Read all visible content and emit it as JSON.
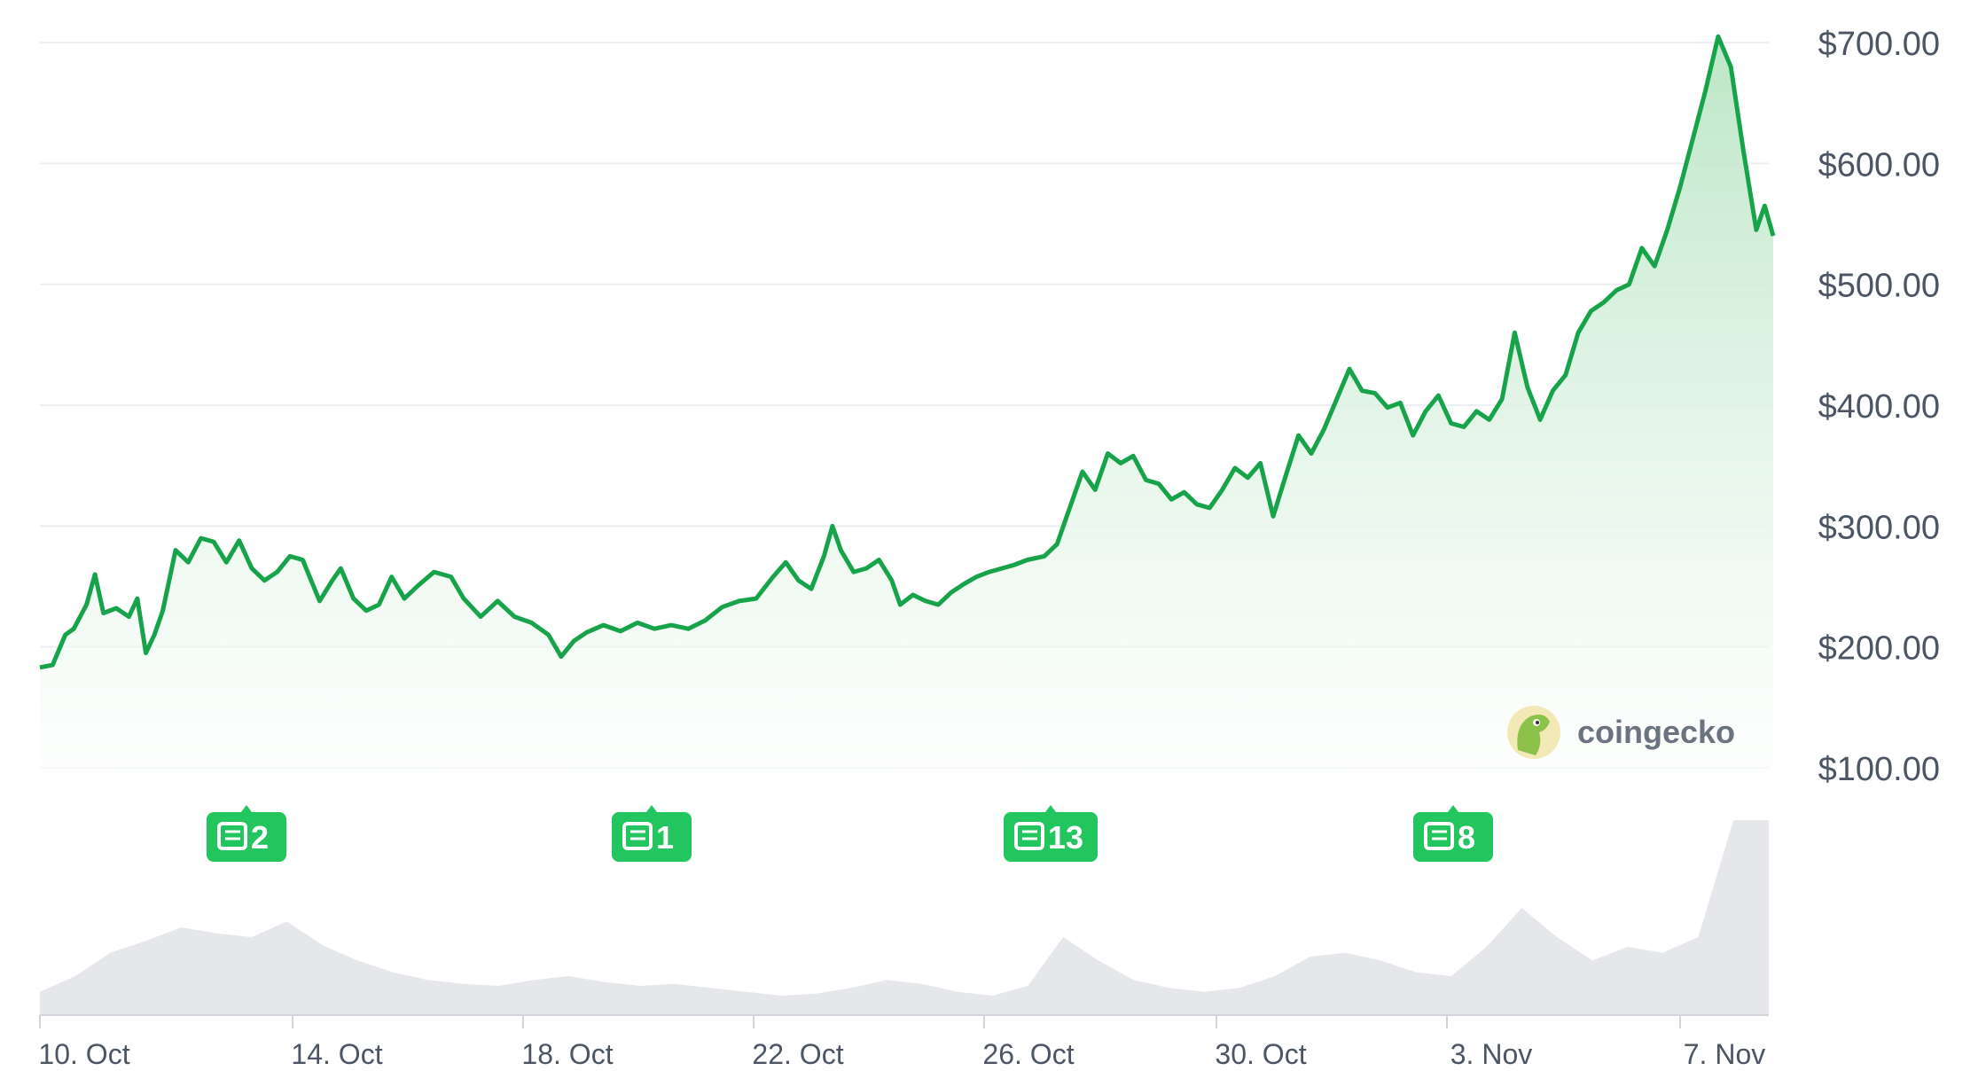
{
  "brand": {
    "name": "coingecko",
    "logo_icon": "gecko-logo-icon"
  },
  "colors": {
    "line": "#16a34a",
    "area_top": "#bfe7c8",
    "volume": "#e5e7eb",
    "news_badge": "#22c55e",
    "grid": "#eceef1",
    "text": "#4b5563"
  },
  "news_badges": [
    {
      "date": "Oct 13",
      "count": "2",
      "icon": "newspaper-icon"
    },
    {
      "date": "Oct 20",
      "count": "1",
      "icon": "newspaper-icon"
    },
    {
      "date": "Oct 27",
      "count": "13",
      "icon": "newspaper-icon"
    },
    {
      "date": "Nov 3",
      "count": "8",
      "icon": "newspaper-icon"
    }
  ],
  "chart_data": {
    "type": "area",
    "title": "",
    "xlabel": "",
    "ylabel": "",
    "grid": true,
    "x_tick_labels": [
      "10. Oct",
      "14. Oct",
      "18. Oct",
      "22. Oct",
      "26. Oct",
      "30. Oct",
      "3. Nov",
      "7. Nov"
    ],
    "y_tick_labels": [
      "$700.00",
      "$600.00",
      "$500.00",
      "$400.00",
      "$300.00",
      "$200.00",
      "$100.00"
    ],
    "y_ticks": [
      700,
      600,
      500,
      400,
      300,
      200,
      100
    ],
    "ylim": [
      100,
      710
    ],
    "x_range_days": [
      -0.8,
      29.1
    ],
    "series": [
      {
        "points": [
          [
            -0.8,
            183
          ],
          [
            -0.5,
            185
          ],
          [
            -0.2,
            210
          ],
          [
            0.0,
            215
          ],
          [
            0.3,
            235
          ],
          [
            0.5,
            260
          ],
          [
            0.7,
            228
          ],
          [
            1.0,
            232
          ],
          [
            1.3,
            225
          ],
          [
            1.5,
            240
          ],
          [
            1.7,
            195
          ],
          [
            1.9,
            210
          ],
          [
            2.1,
            230
          ],
          [
            2.4,
            280
          ],
          [
            2.7,
            270
          ],
          [
            3.0,
            290
          ],
          [
            3.3,
            287
          ],
          [
            3.6,
            270
          ],
          [
            3.9,
            288
          ],
          [
            4.2,
            265
          ],
          [
            4.5,
            255
          ],
          [
            4.8,
            262
          ],
          [
            5.1,
            275
          ],
          [
            5.4,
            272
          ],
          [
            5.8,
            238
          ],
          [
            6.1,
            255
          ],
          [
            6.3,
            265
          ],
          [
            6.6,
            240
          ],
          [
            6.9,
            230
          ],
          [
            7.2,
            235
          ],
          [
            7.5,
            258
          ],
          [
            7.8,
            240
          ],
          [
            8.1,
            250
          ],
          [
            8.5,
            262
          ],
          [
            8.9,
            258
          ],
          [
            9.2,
            240
          ],
          [
            9.6,
            225
          ],
          [
            10.0,
            238
          ],
          [
            10.4,
            225
          ],
          [
            10.8,
            220
          ],
          [
            11.2,
            210
          ],
          [
            11.5,
            192
          ],
          [
            11.8,
            205
          ],
          [
            12.1,
            212
          ],
          [
            12.5,
            218
          ],
          [
            12.9,
            213
          ],
          [
            13.3,
            220
          ],
          [
            13.7,
            215
          ],
          [
            14.1,
            218
          ],
          [
            14.5,
            215
          ],
          [
            14.9,
            222
          ],
          [
            15.3,
            233
          ],
          [
            15.7,
            238
          ],
          [
            16.1,
            240
          ],
          [
            16.5,
            258
          ],
          [
            16.8,
            270
          ],
          [
            17.1,
            255
          ],
          [
            17.4,
            248
          ],
          [
            17.7,
            275
          ],
          [
            17.9,
            300
          ],
          [
            18.1,
            280
          ],
          [
            18.4,
            262
          ],
          [
            18.7,
            265
          ],
          [
            19.0,
            272
          ],
          [
            19.3,
            255
          ],
          [
            19.5,
            235
          ],
          [
            19.8,
            243
          ],
          [
            20.1,
            238
          ],
          [
            20.4,
            235
          ],
          [
            20.7,
            245
          ],
          [
            21.0,
            252
          ],
          [
            21.3,
            258
          ],
          [
            21.6,
            262
          ],
          [
            21.9,
            265
          ],
          [
            22.2,
            268
          ],
          [
            22.5,
            272
          ],
          [
            22.9,
            275
          ],
          [
            23.2,
            285
          ],
          [
            23.5,
            315
          ],
          [
            23.8,
            345
          ],
          [
            24.1,
            330
          ],
          [
            24.4,
            360
          ],
          [
            24.7,
            352
          ],
          [
            25.0,
            358
          ],
          [
            25.3,
            338
          ],
          [
            25.6,
            335
          ],
          [
            25.9,
            322
          ],
          [
            26.2,
            328
          ],
          [
            26.5,
            318
          ],
          [
            26.8,
            315
          ],
          [
            27.1,
            330
          ],
          [
            27.4,
            348
          ],
          [
            27.7,
            340
          ],
          [
            28.0,
            352
          ],
          [
            28.3,
            308
          ],
          [
            28.6,
            342
          ],
          [
            28.9,
            375
          ],
          [
            29.2,
            360
          ],
          [
            29.5,
            380
          ],
          [
            29.8,
            405
          ],
          [
            30.1,
            430
          ],
          [
            30.4,
            412
          ],
          [
            30.7,
            410
          ],
          [
            31.0,
            398
          ],
          [
            31.3,
            402
          ],
          [
            31.6,
            375
          ],
          [
            31.9,
            395
          ],
          [
            32.2,
            408
          ],
          [
            32.5,
            385
          ],
          [
            32.8,
            382
          ],
          [
            33.1,
            395
          ],
          [
            33.4,
            388
          ],
          [
            33.7,
            405
          ],
          [
            34.0,
            460
          ],
          [
            34.3,
            415
          ],
          [
            34.6,
            388
          ],
          [
            34.9,
            412
          ],
          [
            35.2,
            425
          ],
          [
            35.5,
            460
          ],
          [
            35.8,
            478
          ],
          [
            36.1,
            485
          ],
          [
            36.4,
            495
          ],
          [
            36.7,
            500
          ],
          [
            37.0,
            530
          ],
          [
            37.3,
            515
          ],
          [
            37.6,
            545
          ],
          [
            37.9,
            580
          ],
          [
            38.2,
            620
          ],
          [
            38.5,
            660
          ],
          [
            38.8,
            705
          ],
          [
            39.1,
            680
          ],
          [
            39.4,
            610
          ],
          [
            39.7,
            545
          ],
          [
            39.9,
            565
          ],
          [
            40.1,
            540
          ]
        ]
      }
    ],
    "volume": {
      "relative_values": [
        0.12,
        0.2,
        0.32,
        0.38,
        0.45,
        0.42,
        0.4,
        0.48,
        0.36,
        0.28,
        0.22,
        0.18,
        0.16,
        0.15,
        0.18,
        0.2,
        0.17,
        0.15,
        0.16,
        0.14,
        0.12,
        0.1,
        0.11,
        0.14,
        0.18,
        0.16,
        0.12,
        0.1,
        0.15,
        0.4,
        0.28,
        0.18,
        0.14,
        0.12,
        0.14,
        0.2,
        0.3,
        0.32,
        0.28,
        0.22,
        0.2,
        0.35,
        0.55,
        0.4,
        0.28,
        0.35,
        0.32,
        0.4,
        1.0,
        1.0
      ]
    }
  }
}
